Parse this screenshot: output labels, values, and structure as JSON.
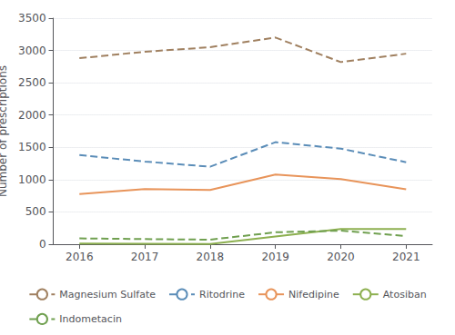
{
  "chart_data": {
    "type": "line",
    "x": [
      2016,
      2017,
      2018,
      2019,
      2020,
      2021
    ],
    "series": [
      {
        "name": "Magnesium Sulfate",
        "values": [
          2880,
          2980,
          3050,
          3200,
          2820,
          2950
        ],
        "color": "#A08060",
        "line_style": "dashed"
      },
      {
        "name": "Ritodrine",
        "values": [
          1380,
          1280,
          1200,
          1580,
          1480,
          1270
        ],
        "color": "#5B8DB8",
        "line_style": "dashed"
      },
      {
        "name": "Nifedipine",
        "values": [
          775,
          855,
          840,
          1080,
          1010,
          850
        ],
        "color": "#E8945A",
        "line_style": "solid"
      },
      {
        "name": "Atosiban",
        "values": [
          10,
          8,
          5,
          120,
          235,
          235
        ],
        "color": "#8DB050",
        "line_style": "solid"
      },
      {
        "name": "Indometacin",
        "values": [
          90,
          80,
          70,
          185,
          210,
          125
        ],
        "color": "#70A050",
        "line_style": "dashed"
      }
    ],
    "ylabel": "Number of prescriptions",
    "xlim": [
      2015.6,
      2021.4
    ],
    "xticks": [
      2016,
      2017,
      2018,
      2019,
      2020,
      2021
    ],
    "ylim": [
      0,
      3500
    ],
    "yticks": [
      0,
      500,
      1000,
      1500,
      2000,
      2500,
      3000,
      3500
    ],
    "grid": true,
    "legend": "bottom"
  }
}
